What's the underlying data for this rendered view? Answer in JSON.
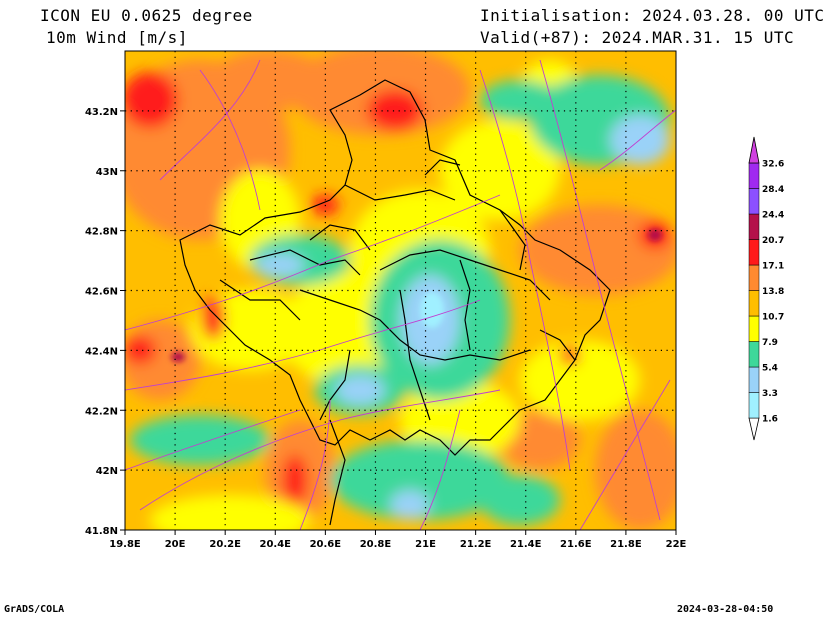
{
  "header": {
    "model": "ICON EU 0.0625 degree",
    "variable": "10m Wind [m/s]",
    "init": "Initialisation: 2024.03.28. 00 UTC",
    "valid": "Valid(+87): 2024.MAR.31. 15 UTC"
  },
  "footer": {
    "credit": "GrADS/COLA",
    "timestamp": "2024-03-28-04:50"
  },
  "map": {
    "lon_range": [
      19.8,
      22.0
    ],
    "lat_range": [
      41.8,
      43.4
    ],
    "x_ticks": [
      "19.8E",
      "20E",
      "20.2E",
      "20.4E",
      "20.6E",
      "20.8E",
      "21E",
      "21.2E",
      "21.4E",
      "21.6E",
      "21.8E",
      "22E"
    ],
    "y_ticks": [
      "41.8N",
      "42N",
      "42.2N",
      "42.4N",
      "42.6N",
      "42.8N",
      "43N",
      "43.2N"
    ],
    "grid": "dotted"
  },
  "colorbar": {
    "levels": [
      "1.6",
      "3.3",
      "5.4",
      "7.9",
      "10.7",
      "13.8",
      "17.1",
      "20.7",
      "24.4",
      "28.4",
      "32.6"
    ],
    "colors": [
      "#a0f0ff",
      "#9ad2f8",
      "#3ed89a",
      "#ffff00",
      "#ffbe00",
      "#ff8a30",
      "#ff1a1a",
      "#b4104a",
      "#8c50ff",
      "#a02af0"
    ]
  }
}
